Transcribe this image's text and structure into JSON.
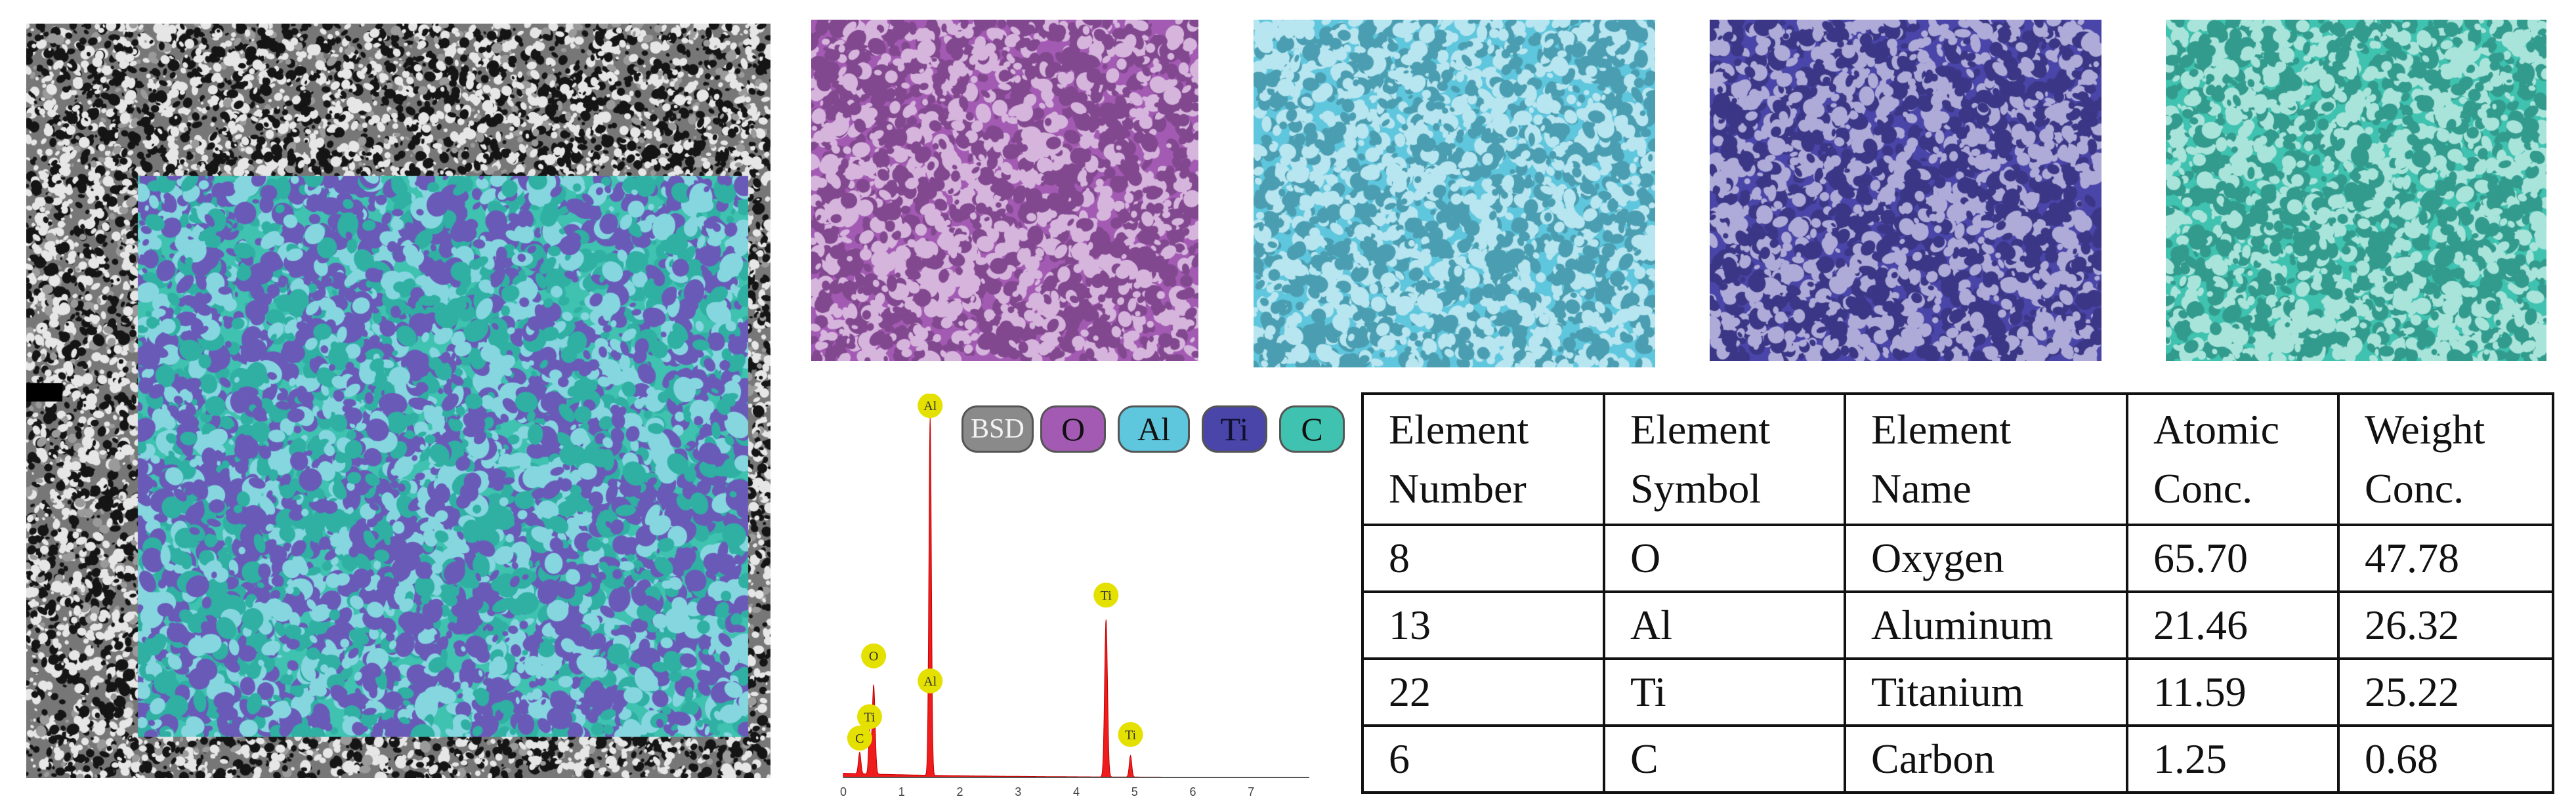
{
  "colors": {
    "oxygen_map": "#a35ab3",
    "aluminum_map": "#5ec6dd",
    "titanium_map": "#4a45a8",
    "carbon_map": "#3fc2b0",
    "bsd_chip": "#8a8a8a",
    "spectrum_fill": "#ee1c1c",
    "peak_marker": "#e4e000"
  },
  "legend": {
    "items": [
      "BSD",
      "O",
      "Al",
      "Ti",
      "C"
    ]
  },
  "chart_data": {
    "type": "area",
    "title": "",
    "xlabel": "",
    "ylabel": "",
    "xlim": [
      0,
      8
    ],
    "ylim": [
      0,
      100
    ],
    "x_ticks": [
      "0",
      "1",
      "2",
      "3",
      "4",
      "5",
      "6",
      "7"
    ],
    "peaks": [
      {
        "label": "C",
        "x": 0.28,
        "y": 6
      },
      {
        "label": "Ti",
        "x": 0.45,
        "y": 12
      },
      {
        "label": "O",
        "x": 0.52,
        "y": 25
      },
      {
        "label": "Al",
        "x": 1.49,
        "y": 100
      },
      {
        "label": "Ti",
        "x": 4.51,
        "y": 44
      },
      {
        "label": "Ti",
        "x": 4.93,
        "y": 6
      }
    ],
    "peak_labels": [
      {
        "label": "Al",
        "x": 1.49,
        "y": 104
      },
      {
        "label": "O",
        "x": 0.52,
        "y": 34
      },
      {
        "label": "Al",
        "x": 1.49,
        "y": 27
      },
      {
        "label": "Ti",
        "x": 0.45,
        "y": 17
      },
      {
        "label": "C",
        "x": 0.28,
        "y": 11
      },
      {
        "label": "Ti",
        "x": 4.51,
        "y": 51
      },
      {
        "label": "Ti",
        "x": 4.93,
        "y": 12
      }
    ]
  },
  "table": {
    "headers": [
      [
        "Element",
        "Number"
      ],
      [
        "Element",
        "Symbol"
      ],
      [
        "Element",
        "Name"
      ],
      [
        "Atomic",
        "Conc."
      ],
      [
        "Weight",
        "Conc."
      ]
    ],
    "rows": [
      [
        "8",
        "O",
        "Oxygen",
        "65.70",
        "47.78"
      ],
      [
        "13",
        "Al",
        "Aluminum",
        "21.46",
        "26.32"
      ],
      [
        "22",
        "Ti",
        "Titanium",
        "11.59",
        "25.22"
      ],
      [
        "6",
        "C",
        "Carbon",
        "1.25",
        "0.68"
      ]
    ]
  }
}
